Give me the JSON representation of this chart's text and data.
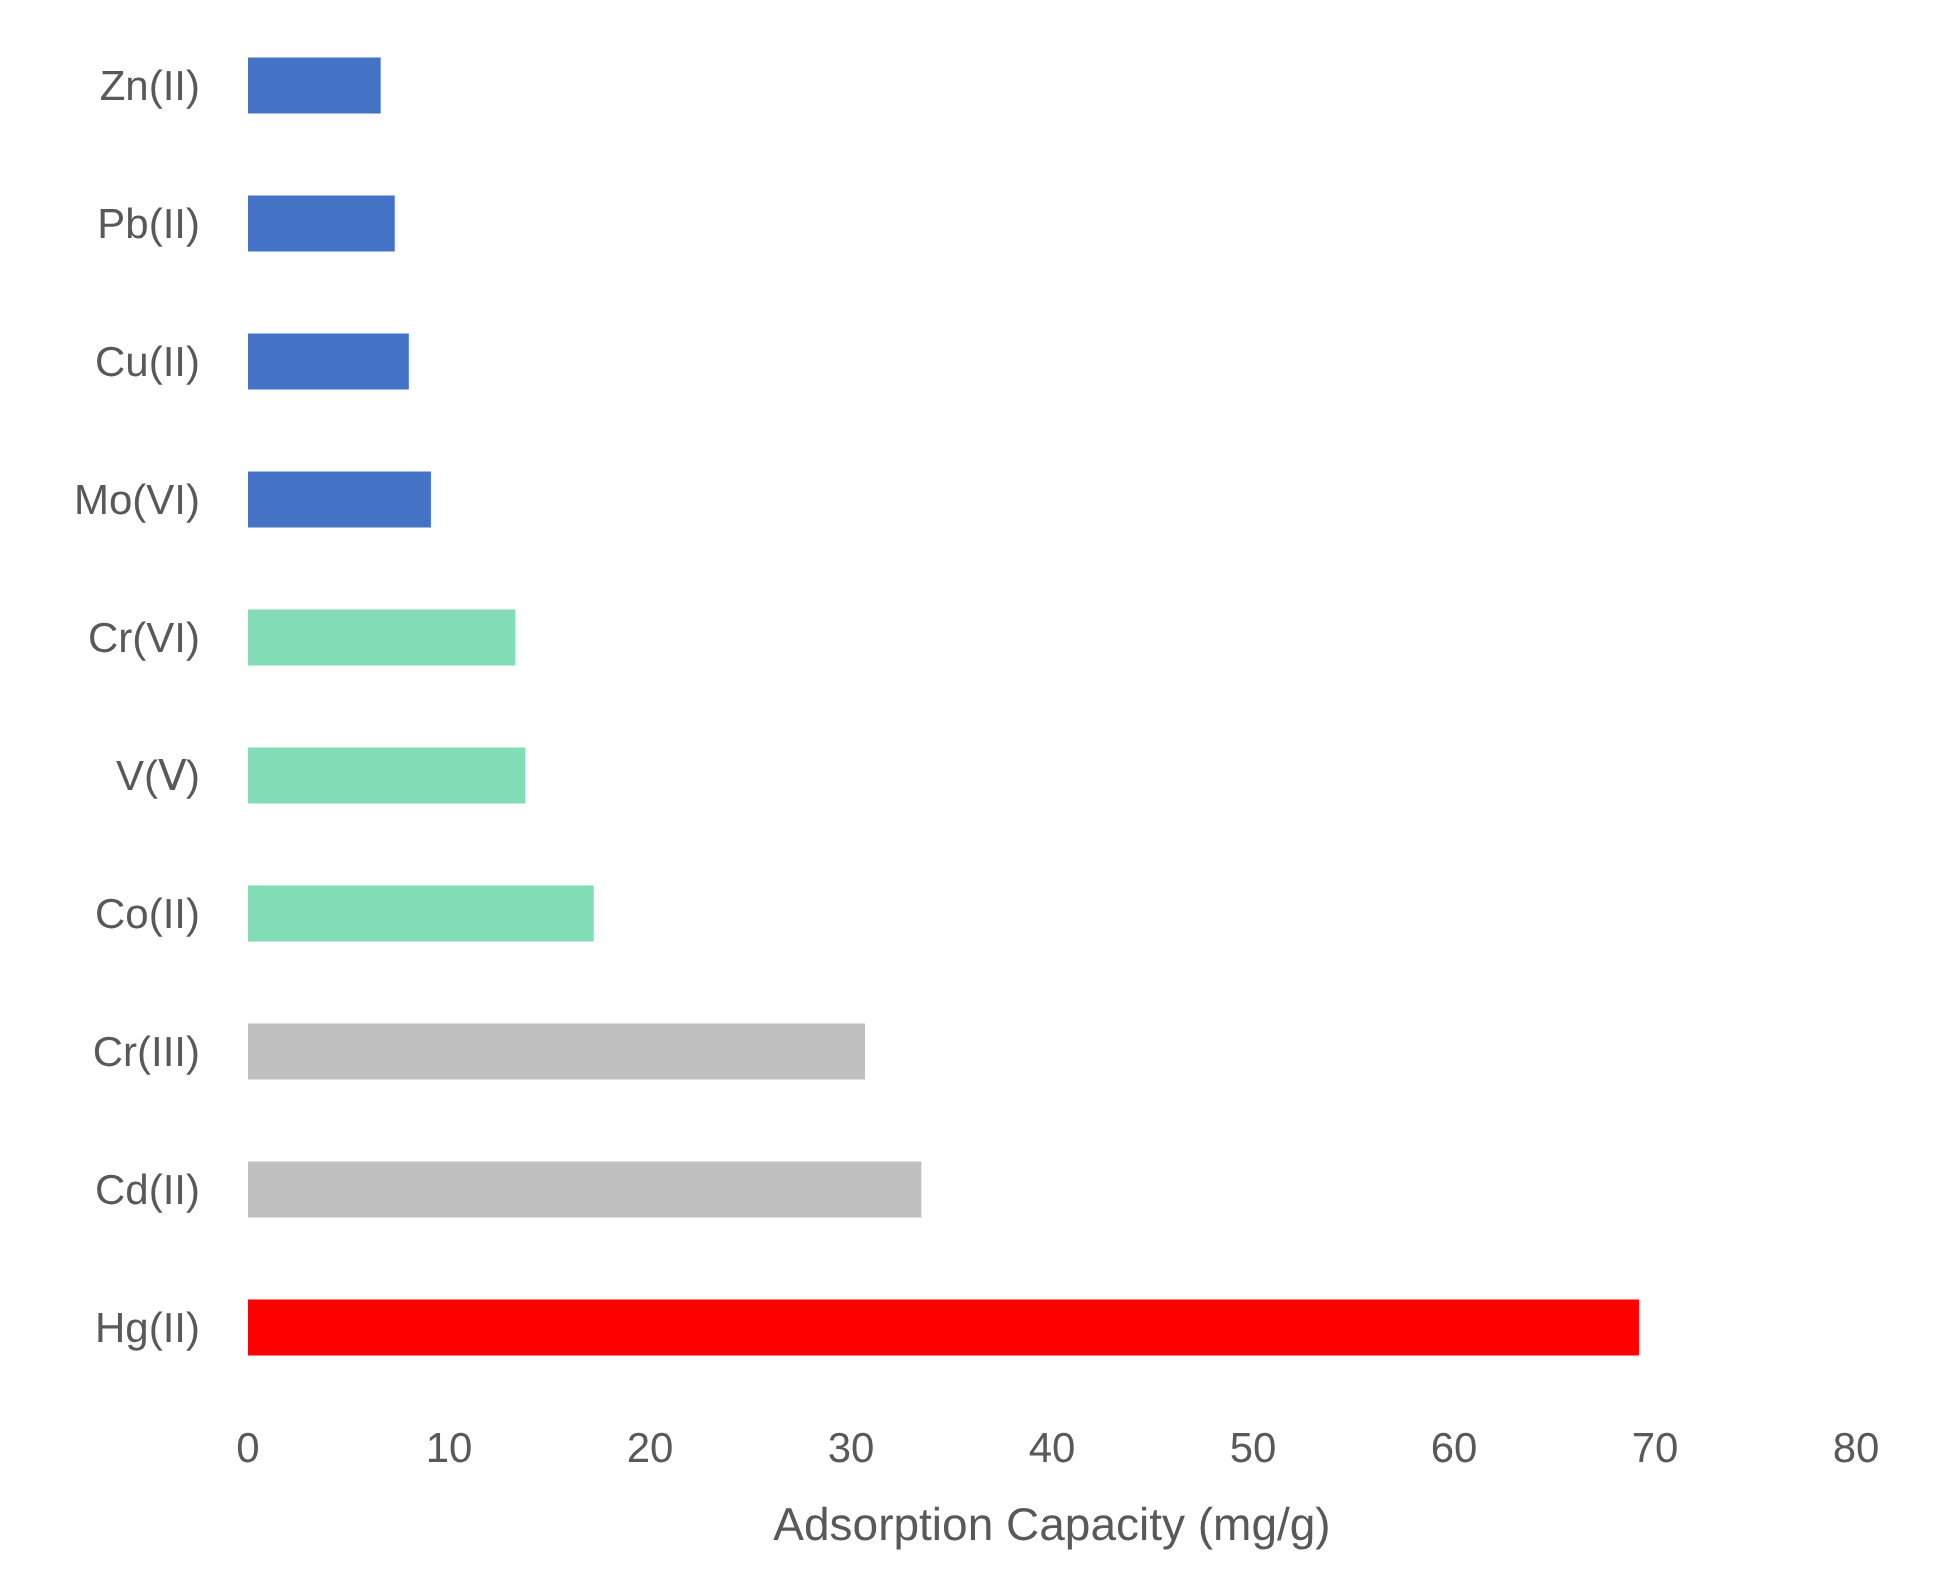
{
  "chart_data": {
    "type": "bar",
    "orientation": "horizontal",
    "xlabel": "Adsorption Capacity (mg/g)",
    "categories": [
      "Zn(II)",
      "Pb(II)",
      "Cu(II)",
      "Mo(VI)",
      "Cr(VI)",
      "V(Ⅴ)",
      "Co(II)",
      "Cr(III)",
      "Cd(II)",
      "Hg(II)"
    ],
    "values": [
      6.6,
      7.3,
      8.0,
      9.1,
      13.3,
      13.8,
      17.2,
      30.7,
      33.5,
      69.2
    ],
    "colors": [
      "#4472c4",
      "#4472c4",
      "#4472c4",
      "#4472c4",
      "#82dcb5",
      "#82dcb5",
      "#82dcb5",
      "#bfbfbf",
      "#bfbfbf",
      "#ff0000"
    ],
    "xlim": [
      0,
      80
    ],
    "xticks": [
      0,
      10,
      20,
      30,
      40,
      50,
      60,
      70,
      80
    ],
    "grid": false,
    "legend": false
  }
}
